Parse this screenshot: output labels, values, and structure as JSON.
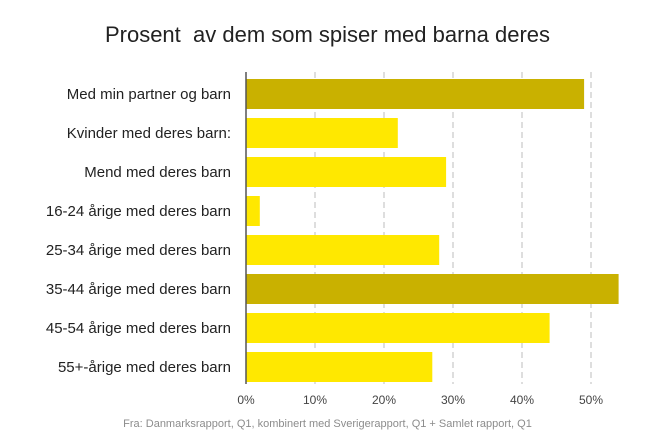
{
  "chart_data": {
    "type": "bar",
    "orientation": "horizontal",
    "title": "Prosent  av dem som spiser med barna deres",
    "categories": [
      "Med min partner og barn",
      "Kvinder med deres barn:",
      "Mend med deres barn",
      "16-24 årige med deres barn",
      "25-34 årige med deres barn",
      "35-44 årige med deres barn",
      "45-54 årige med deres barn",
      "55+-årige med deres barn"
    ],
    "values": [
      49,
      22,
      29,
      2,
      28,
      54,
      44,
      27
    ],
    "highlighted": [
      true,
      false,
      false,
      false,
      false,
      true,
      false,
      false
    ],
    "xlim": [
      0,
      54
    ],
    "xticks": [
      0,
      10,
      20,
      30,
      40,
      50
    ],
    "xtick_labels": [
      "0%",
      "10%",
      "20%",
      "30%",
      "40%",
      "50%"
    ],
    "grid": "vertical-dashed",
    "colors": {
      "bar": "#ffe800",
      "highlight": "#c9b100",
      "grid": "#bdbdbd",
      "axis": "#555555"
    },
    "source": "Fra: Danmarksrapport, Q1, kombinert med Sverigerapport, Q1 + Samlet rapport, Q1"
  }
}
